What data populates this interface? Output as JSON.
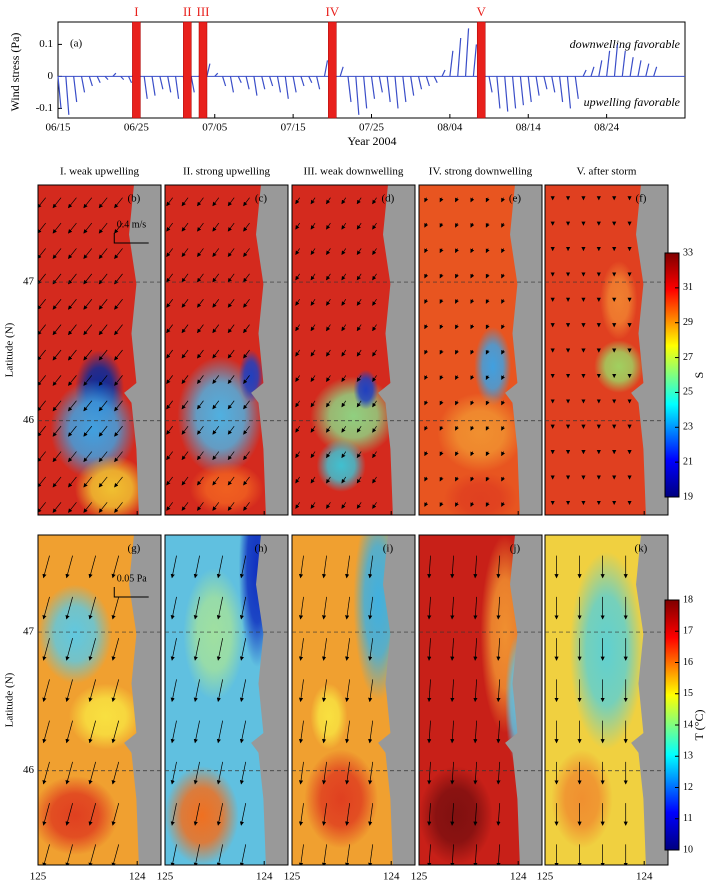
{
  "chart_data": [
    {
      "type": "stick",
      "panel_label": "(a)",
      "ylabel": "Wind stress (Pa)",
      "xlabel": "Year 2004",
      "annotations": [
        "downwelling favorable",
        "upwelling favorable"
      ],
      "color": "#3a4ec8",
      "event_color": "#e8201c",
      "xlim": [
        0,
        80
      ],
      "ylim": [
        -0.13,
        0.17
      ],
      "yticks": [
        -0.1,
        0,
        0.1
      ],
      "xticks": [
        {
          "value": 0,
          "label": "06/15"
        },
        {
          "value": 10,
          "label": "06/25"
        },
        {
          "value": 20,
          "label": "07/05"
        },
        {
          "value": 30,
          "label": "07/15"
        },
        {
          "value": 40,
          "label": "07/25"
        },
        {
          "value": 50,
          "label": "08/04"
        },
        {
          "value": 60,
          "label": "08/14"
        },
        {
          "value": 70,
          "label": "08/24"
        }
      ],
      "events": [
        {
          "label": "I",
          "x": 10
        },
        {
          "label": "II",
          "x": 16.5
        },
        {
          "label": "III",
          "x": 18.5
        },
        {
          "label": "IV",
          "x": 35
        },
        {
          "label": "V",
          "x": 54
        }
      ],
      "x": [
        0,
        1,
        2,
        3,
        4,
        5,
        6,
        7,
        8,
        9,
        10,
        11,
        12,
        13,
        14,
        15,
        16,
        17,
        18,
        19,
        20,
        21,
        22,
        23,
        24,
        25,
        26,
        27,
        28,
        29,
        30,
        31,
        32,
        33,
        34,
        35,
        36,
        37,
        38,
        39,
        40,
        41,
        42,
        43,
        44,
        45,
        46,
        47,
        48,
        49,
        50,
        51,
        52,
        53,
        54,
        55,
        56,
        57,
        58,
        59,
        60,
        61,
        62,
        63,
        64,
        65,
        66,
        67,
        68,
        69,
        70,
        71,
        72,
        73,
        74,
        75,
        76
      ],
      "values": [
        -0.1,
        -0.12,
        -0.08,
        -0.05,
        -0.03,
        -0.02,
        -0.01,
        0.01,
        -0.01,
        -0.02,
        -0.05,
        -0.07,
        -0.06,
        -0.04,
        -0.05,
        -0.07,
        -0.09,
        -0.05,
        0.02,
        0.04,
        0.01,
        -0.03,
        -0.05,
        -0.02,
        -0.04,
        -0.06,
        -0.04,
        -0.03,
        -0.05,
        -0.07,
        -0.05,
        -0.03,
        -0.02,
        -0.04,
        0.05,
        0.09,
        0.03,
        -0.08,
        -0.12,
        -0.1,
        -0.07,
        -0.05,
        -0.08,
        -0.1,
        -0.08,
        -0.06,
        -0.04,
        -0.03,
        -0.02,
        0.02,
        0.08,
        0.12,
        0.15,
        0.1,
        0.05,
        -0.05,
        -0.1,
        -0.11,
        -0.1,
        -0.09,
        -0.08,
        -0.06,
        -0.04,
        -0.05,
        -0.08,
        -0.1,
        -0.07,
        0.02,
        0.03,
        0.05,
        0.08,
        0.1,
        0.08,
        0.06,
        0.05,
        0.04,
        0.03
      ]
    },
    {
      "type": "map",
      "column_titles": [
        "I. weak upwelling",
        "II. strong upwelling",
        "III. weak downwelling",
        "IV. strong downwelling",
        "V. after storm"
      ],
      "panel_labels": [
        [
          "(b)",
          "(c)",
          "(d)",
          "(e)",
          "(f)"
        ],
        [
          "(g)",
          "(h)",
          "(i)",
          "(j)",
          "(k)"
        ]
      ],
      "scale_labels": [
        "0.4 m/s",
        "0.05 Pa"
      ],
      "ylabel": "Latitude (N)",
      "xlim": [
        125,
        123.76
      ],
      "ylim": [
        45.32,
        47.7
      ],
      "xticks": [
        125,
        124
      ],
      "yticks": [
        46,
        47
      ],
      "colorbars": [
        {
          "label": "S",
          "lim": [
            19,
            33
          ],
          "ticks": [
            19,
            21,
            23,
            25,
            27,
            29,
            31,
            33
          ]
        },
        {
          "label": "T (°C)",
          "lim": [
            10,
            18
          ],
          "ticks": [
            10,
            11,
            12,
            13,
            14,
            15,
            16,
            17,
            18
          ]
        }
      ]
    }
  ]
}
